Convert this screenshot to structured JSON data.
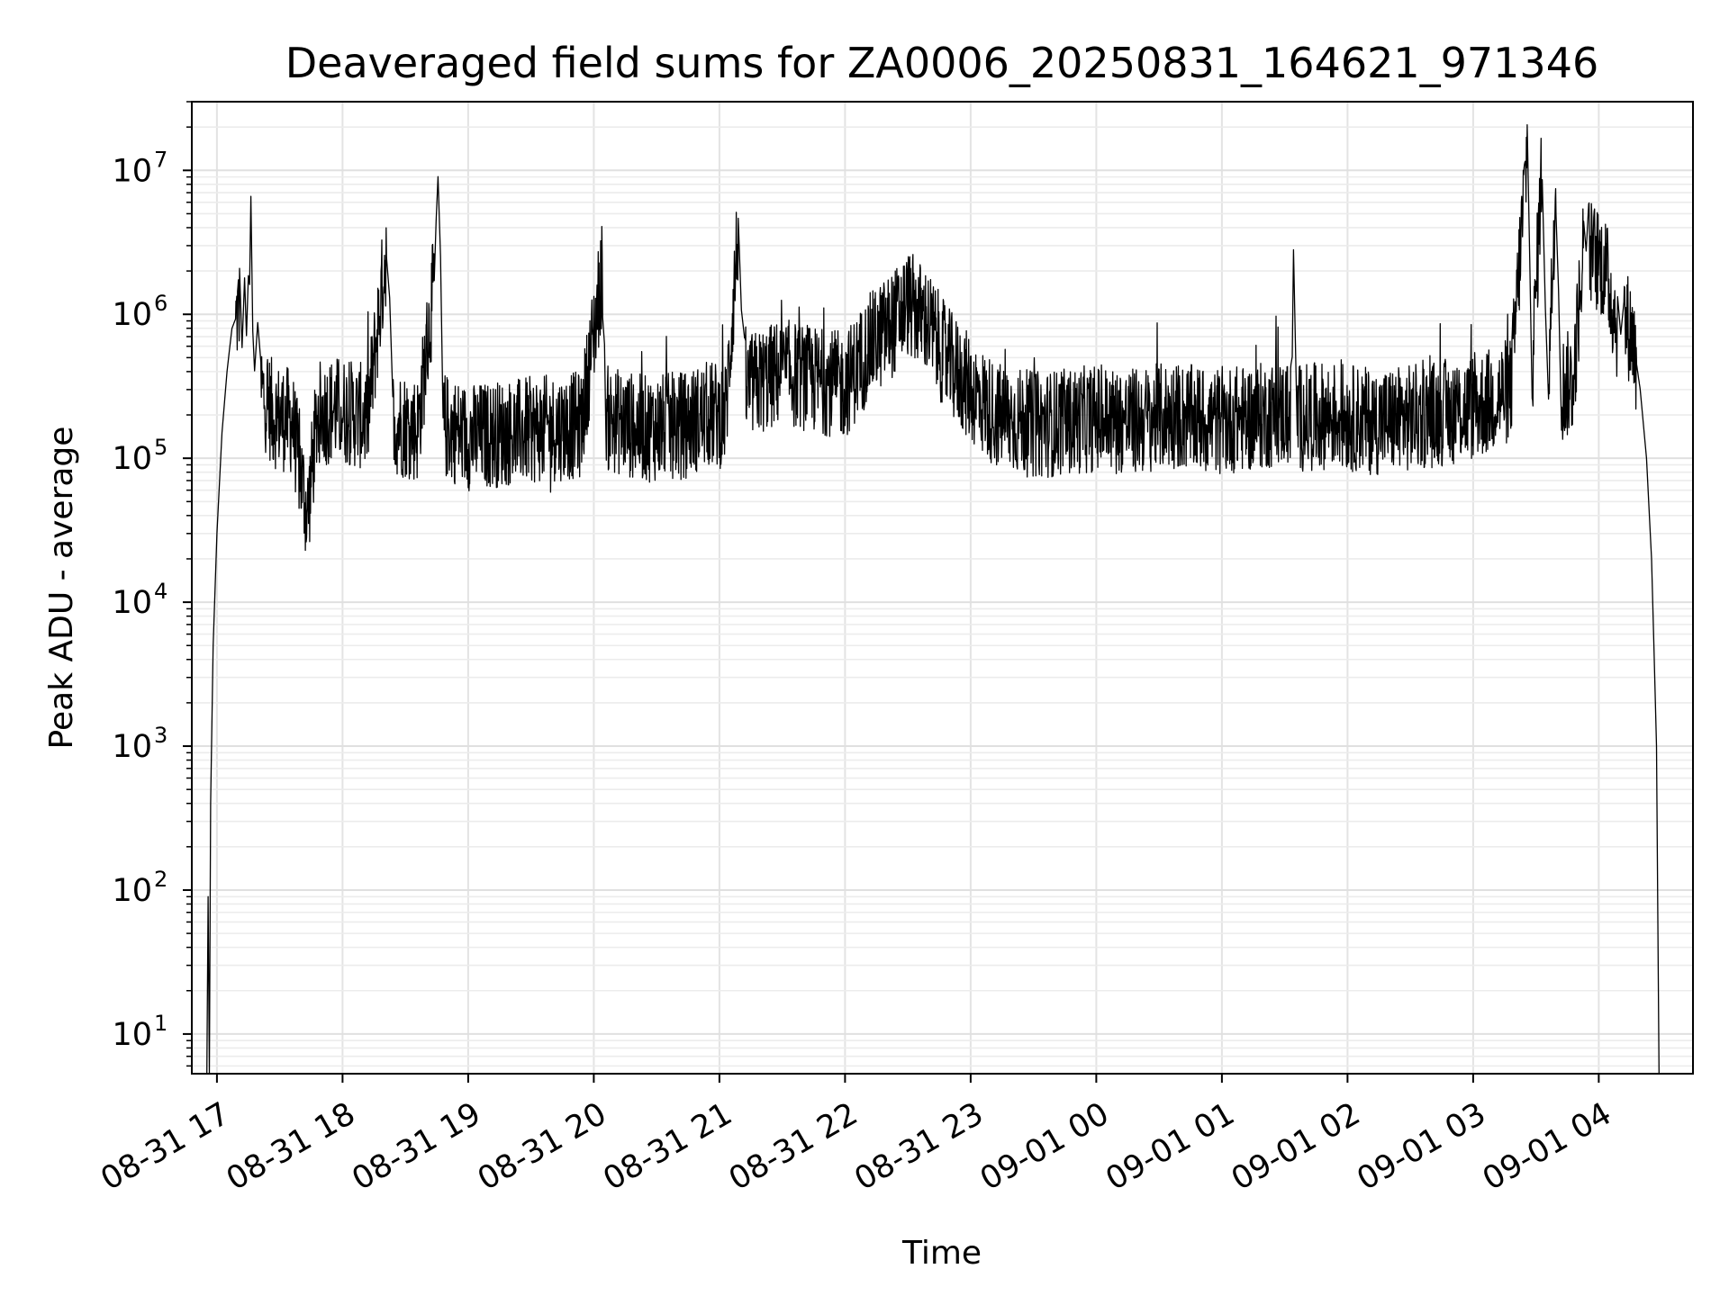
{
  "chart_data": {
    "type": "line",
    "title": "Deaveraged field sums for ZA0006_20250831_164621_971346",
    "xlabel": "Time",
    "ylabel": "Peak ADU - average",
    "yscale": "log",
    "ylim": [
      5.3,
      30000000
    ],
    "xlim_hours": [
      -0.2,
      11.75
    ],
    "grid": true,
    "x_ticks": [
      {
        "label": "08-31 17",
        "hours": 0
      },
      {
        "label": "08-31 18",
        "hours": 1
      },
      {
        "label": "08-31 19",
        "hours": 2
      },
      {
        "label": "08-31 20",
        "hours": 3
      },
      {
        "label": "08-31 21",
        "hours": 4
      },
      {
        "label": "08-31 22",
        "hours": 5
      },
      {
        "label": "08-31 23",
        "hours": 6
      },
      {
        "label": "09-01 00",
        "hours": 7
      },
      {
        "label": "09-01 01",
        "hours": 8
      },
      {
        "label": "09-01 02",
        "hours": 9
      },
      {
        "label": "09-01 03",
        "hours": 10
      },
      {
        "label": "09-01 04",
        "hours": 11
      }
    ],
    "y_ticks": [
      {
        "base": "10",
        "exp": "1",
        "value": 10
      },
      {
        "base": "10",
        "exp": "2",
        "value": 100
      },
      {
        "base": "10",
        "exp": "3",
        "value": 1000
      },
      {
        "base": "10",
        "exp": "4",
        "value": 10000
      },
      {
        "base": "10",
        "exp": "5",
        "value": 100000
      },
      {
        "base": "10",
        "exp": "6",
        "value": 1000000
      },
      {
        "base": "10",
        "exp": "7",
        "value": 10000000
      }
    ],
    "series": [
      {
        "name": "Peak ADU - average",
        "color": "#000000",
        "points_hours_value": [
          [
            -0.08,
            5.3
          ],
          [
            -0.07,
            90
          ],
          [
            -0.06,
            5.3
          ],
          [
            -0.05,
            400
          ],
          [
            -0.03,
            5000
          ],
          [
            0.0,
            30000
          ],
          [
            0.04,
            150000
          ],
          [
            0.08,
            400000
          ],
          [
            0.12,
            800000
          ],
          [
            0.18,
            1100000
          ],
          [
            0.22,
            1200000
          ],
          [
            0.25,
            900000
          ],
          [
            0.27,
            3800000
          ],
          [
            0.3,
            500000
          ],
          [
            0.35,
            300000
          ],
          [
            0.45,
            200000
          ],
          [
            0.6,
            180000
          ],
          [
            0.72,
            40000
          ],
          [
            0.8,
            200000
          ],
          [
            0.95,
            220000
          ],
          [
            1.2,
            190000
          ],
          [
            1.35,
            2900000
          ],
          [
            1.4,
            180000
          ],
          [
            1.6,
            160000
          ],
          [
            1.73,
            1700000
          ],
          [
            1.76,
            8000000
          ],
          [
            1.8,
            170000
          ],
          [
            2.0,
            140000
          ],
          [
            2.3,
            150000
          ],
          [
            2.6,
            160000
          ],
          [
            2.9,
            170000
          ],
          [
            3.07,
            2100000
          ],
          [
            3.1,
            190000
          ],
          [
            3.4,
            160000
          ],
          [
            3.7,
            170000
          ],
          [
            3.9,
            200000
          ],
          [
            4.05,
            200000
          ],
          [
            4.15,
            4000000
          ],
          [
            4.2,
            300000
          ],
          [
            4.5,
            400000
          ],
          [
            4.75,
            350000
          ],
          [
            5.0,
            320000
          ],
          [
            5.2,
            600000
          ],
          [
            5.4,
            900000
          ],
          [
            5.5,
            1200000
          ],
          [
            5.65,
            900000
          ],
          [
            5.8,
            500000
          ],
          [
            6.0,
            300000
          ],
          [
            6.2,
            200000
          ],
          [
            6.5,
            170000
          ],
          [
            6.8,
            180000
          ],
          [
            7.0,
            190000
          ],
          [
            7.3,
            180000
          ],
          [
            7.6,
            200000
          ],
          [
            7.9,
            180000
          ],
          [
            8.2,
            190000
          ],
          [
            8.55,
            210000
          ],
          [
            8.57,
            2100000
          ],
          [
            8.6,
            190000
          ],
          [
            8.9,
            200000
          ],
          [
            9.2,
            180000
          ],
          [
            9.5,
            190000
          ],
          [
            9.8,
            210000
          ],
          [
            9.95,
            220000
          ],
          [
            10.1,
            240000
          ],
          [
            10.3,
            300000
          ],
          [
            10.43,
            14000000
          ],
          [
            10.47,
            400000
          ],
          [
            10.55,
            12000000
          ],
          [
            10.6,
            350000
          ],
          [
            10.66,
            10000000
          ],
          [
            10.7,
            300000
          ],
          [
            10.8,
            350000
          ],
          [
            10.88,
            3300000
          ],
          [
            10.92,
            2800000
          ],
          [
            11.05,
            2100000
          ],
          [
            11.15,
            800000
          ],
          [
            11.2,
            950000
          ],
          [
            11.27,
            700000
          ],
          [
            11.33,
            300000
          ],
          [
            11.38,
            100000
          ],
          [
            11.42,
            20000
          ],
          [
            11.46,
            1000
          ],
          [
            11.48,
            5.3
          ]
        ]
      }
    ]
  }
}
